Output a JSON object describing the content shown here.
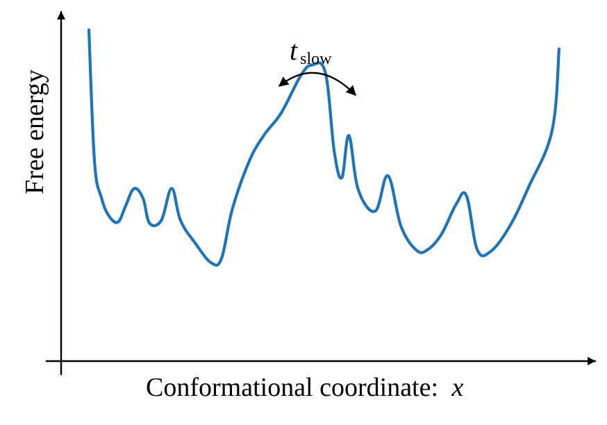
{
  "chart_data": {
    "type": "line",
    "title": "",
    "xlabel": "Conformational coordinate:",
    "xlabel_variable": "x",
    "ylabel": "Free energy",
    "annotation": {
      "symbol": "t",
      "subscript": "slow",
      "meaning": "double-headed arrow over the central barrier"
    },
    "xlim": [
      0,
      1
    ],
    "ylim": [
      0,
      1
    ],
    "grid": false,
    "legend": "none",
    "series": [
      {
        "name": "free-energy-landscape",
        "color": "#1f73b8",
        "x": [
          0.0,
          0.012,
          0.027,
          0.043,
          0.062,
          0.078,
          0.096,
          0.115,
          0.129,
          0.154,
          0.176,
          0.195,
          0.226,
          0.26,
          0.282,
          0.305,
          0.341,
          0.373,
          0.409,
          0.451,
          0.475,
          0.503,
          0.522,
          0.538,
          0.553,
          0.573,
          0.609,
          0.636,
          0.664,
          0.697,
          0.721,
          0.75,
          0.781,
          0.803,
          0.826,
          0.855,
          0.895,
          0.935,
          0.985,
          1.0
        ],
        "y": [
          1.0,
          0.53,
          0.4,
          0.336,
          0.315,
          0.372,
          0.434,
          0.4,
          0.311,
          0.321,
          0.435,
          0.32,
          0.24,
          0.17,
          0.185,
          0.361,
          0.532,
          0.626,
          0.704,
          0.838,
          0.875,
          0.847,
          0.564,
          0.473,
          0.623,
          0.43,
          0.354,
          0.48,
          0.299,
          0.214,
          0.217,
          0.272,
          0.378,
          0.409,
          0.216,
          0.211,
          0.3,
          0.439,
          0.64,
          0.932
        ]
      }
    ]
  },
  "colors": {
    "curve": "#1f73b8",
    "axis": "#000000",
    "text": "#000000"
  }
}
